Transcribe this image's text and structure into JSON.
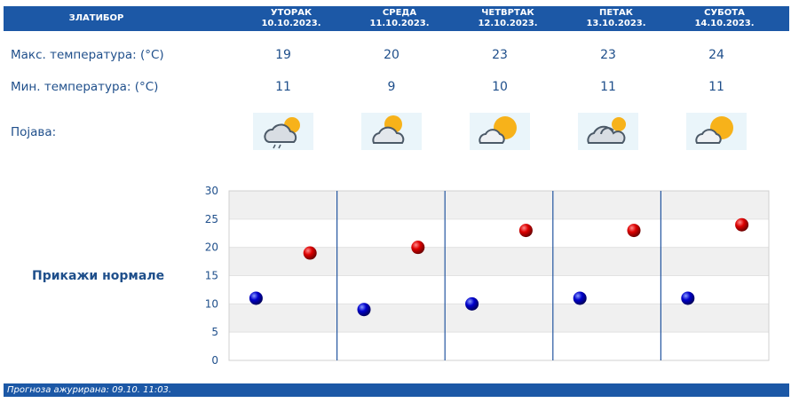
{
  "header": {
    "city": "ЗЛАТИБОР",
    "days": [
      {
        "name": "УТОРАК",
        "date": "10.10.2023."
      },
      {
        "name": "СРЕДА",
        "date": "11.10.2023."
      },
      {
        "name": "ЧЕТВРТАК",
        "date": "12.10.2023."
      },
      {
        "name": "ПЕТАК",
        "date": "13.10.2023."
      },
      {
        "name": "СУБОТА",
        "date": "14.10.2023."
      }
    ]
  },
  "rows": {
    "max_label": "Макс. температура: (°C)",
    "min_label": "Мин. температура: (°C)",
    "phenomenon_label": "Појава:",
    "max_values": [
      "19",
      "20",
      "23",
      "23",
      "24"
    ],
    "min_values": [
      "11",
      "9",
      "10",
      "11",
      "11"
    ],
    "icons": [
      "cloudy-light-rain-icon",
      "partly-cloudy-icon",
      "mostly-sunny-icon",
      "mostly-cloudy-icon",
      "mostly-sunny-icon"
    ]
  },
  "normals_link": "Прикажи нормале",
  "footer": "Прогноза ажурирана:  09.10. 11:03.",
  "colors": {
    "header": "#1c58a6",
    "max_marker": "#cc0000",
    "min_marker": "#0000bb",
    "text": "#1f4f8b"
  },
  "chart_data": {
    "type": "scatter",
    "categories": [
      "10.10.2023.",
      "11.10.2023.",
      "12.10.2023.",
      "13.10.2023.",
      "14.10.2023."
    ],
    "series": [
      {
        "values": [
          11,
          9,
          10,
          11,
          11
        ],
        "color": "#0000bb"
      },
      {
        "values": [
          19,
          20,
          23,
          23,
          24
        ],
        "color": "#cc0000"
      }
    ],
    "ylim": [
      0,
      30
    ],
    "yticks": [
      0,
      5,
      10,
      15,
      20,
      25,
      30
    ],
    "grid": true,
    "title": "",
    "xlabel": "",
    "ylabel": ""
  }
}
